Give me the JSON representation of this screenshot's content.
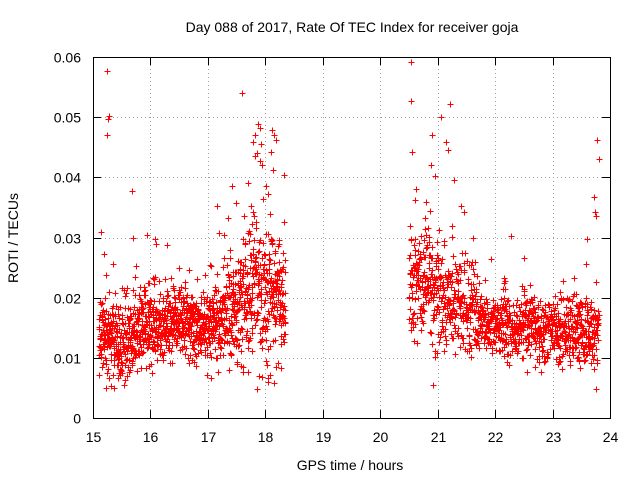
{
  "chart_data": {
    "type": "scatter",
    "title": "Day 088 of 2017, Rate Of TEC Index for receiver goja",
    "xlabel": "GPS time / hours",
    "ylabel": "ROTI / TECUs",
    "xlim": [
      15,
      24
    ],
    "ylim": [
      0,
      0.06
    ],
    "xticks": [
      "15",
      "16",
      "17",
      "18",
      "19",
      "20",
      "21",
      "22",
      "23",
      "24"
    ],
    "yticks": [
      "0",
      "0.01",
      "0.02",
      "0.03",
      "0.04",
      "0.05",
      "0.06"
    ],
    "grid": true,
    "marker": "plus",
    "color": "#ff0000",
    "series": [
      {
        "name": "ROTI",
        "segments": [
          {
            "x_start": 15.1,
            "x_end": 18.35,
            "profile": [
              [
                15.1,
                0.014
              ],
              [
                15.3,
                0.013
              ],
              [
                15.6,
                0.013
              ],
              [
                16.0,
                0.015
              ],
              [
                16.3,
                0.016
              ],
              [
                16.6,
                0.016
              ],
              [
                17.0,
                0.015
              ],
              [
                17.3,
                0.017
              ],
              [
                17.6,
                0.019
              ],
              [
                17.8,
                0.022
              ],
              [
                18.0,
                0.021
              ],
              [
                18.2,
                0.02
              ],
              [
                18.35,
                0.019
              ]
            ],
            "spread": [
              [
                15.1,
                0.004
              ],
              [
                16.0,
                0.004
              ],
              [
                17.0,
                0.004
              ],
              [
                17.5,
                0.006
              ],
              [
                17.8,
                0.009
              ],
              [
                18.0,
                0.008
              ],
              [
                18.35,
                0.006
              ]
            ],
            "count": 1300
          },
          {
            "x_start": 20.5,
            "x_end": 23.8,
            "profile": [
              [
                20.5,
                0.02
              ],
              [
                20.7,
                0.022
              ],
              [
                21.0,
                0.021
              ],
              [
                21.3,
                0.019
              ],
              [
                21.6,
                0.017
              ],
              [
                22.0,
                0.015
              ],
              [
                22.5,
                0.015
              ],
              [
                23.0,
                0.015
              ],
              [
                23.4,
                0.014
              ],
              [
                23.8,
                0.014
              ]
            ],
            "spread": [
              [
                20.5,
                0.006
              ],
              [
                20.8,
                0.007
              ],
              [
                21.2,
                0.006
              ],
              [
                21.6,
                0.004
              ],
              [
                22.0,
                0.0035
              ],
              [
                23.0,
                0.0035
              ],
              [
                23.8,
                0.004
              ]
            ],
            "count": 1100
          }
        ],
        "outliers": [
          [
            15.25,
            0.0577
          ],
          [
            15.27,
            0.0502
          ],
          [
            15.26,
            0.0497
          ],
          [
            15.25,
            0.047
          ],
          [
            15.68,
            0.0378
          ],
          [
            15.7,
            0.0299
          ],
          [
            15.2,
            0.0272
          ],
          [
            16.08,
            0.0297
          ],
          [
            16.1,
            0.029
          ],
          [
            17.15,
            0.0353
          ],
          [
            17.2,
            0.0308
          ],
          [
            17.78,
            0.0458
          ],
          [
            17.82,
            0.047
          ],
          [
            17.88,
            0.0489
          ],
          [
            17.9,
            0.0482
          ],
          [
            17.92,
            0.0455
          ],
          [
            17.95,
            0.042
          ],
          [
            17.85,
            0.044
          ],
          [
            18.12,
            0.0478
          ],
          [
            18.15,
            0.047
          ],
          [
            18.18,
            0.0462
          ],
          [
            18.1,
            0.0442
          ],
          [
            18.14,
            0.0412
          ],
          [
            17.7,
            0.039
          ],
          [
            17.75,
            0.0352
          ],
          [
            18.05,
            0.0372
          ],
          [
            18.08,
            0.0339
          ],
          [
            20.54,
            0.0592
          ],
          [
            20.53,
            0.0527
          ],
          [
            20.55,
            0.0442
          ],
          [
            20.62,
            0.038
          ],
          [
            20.6,
            0.0362
          ],
          [
            20.9,
            0.0471
          ],
          [
            20.88,
            0.042
          ],
          [
            20.95,
            0.0402
          ],
          [
            21.15,
            0.0458
          ],
          [
            21.18,
            0.0445
          ],
          [
            21.22,
            0.0522
          ],
          [
            21.28,
            0.0395
          ],
          [
            21.4,
            0.0352
          ],
          [
            21.45,
            0.0342
          ],
          [
            20.92,
            0.0055
          ],
          [
            23.78,
            0.0462
          ],
          [
            23.8,
            0.043
          ],
          [
            23.72,
            0.0368
          ],
          [
            23.74,
            0.0342
          ],
          [
            23.76,
            0.0335
          ],
          [
            23.6,
            0.0298
          ]
        ]
      }
    ]
  }
}
